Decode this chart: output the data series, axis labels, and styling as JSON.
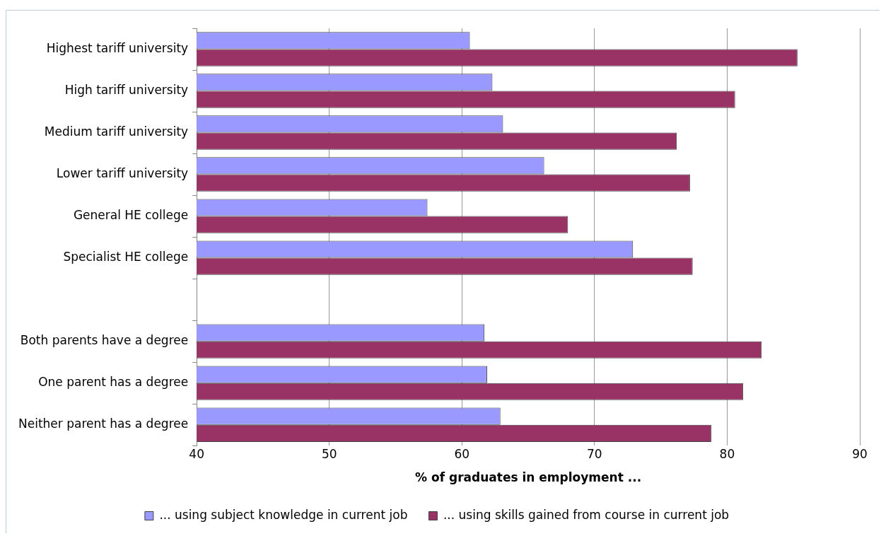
{
  "chart_data": {
    "type": "bar",
    "orientation": "horizontal",
    "categories": [
      "Highest tariff university",
      "High tariff university",
      "Medium tariff university",
      "Lower tariff university",
      "General HE college",
      "Specialist HE college",
      null,
      "Both parents have a degree",
      "One parent has a degree",
      "Neither parent has a degree"
    ],
    "series": [
      {
        "name": "... using subject knowledge in current job",
        "color": "#9999ff",
        "values": [
          60.6,
          62.3,
          63.1,
          66.2,
          57.4,
          72.9,
          null,
          61.7,
          61.9,
          62.9
        ]
      },
      {
        "name": "... using skills gained from course in current job",
        "color": "#993366",
        "values": [
          85.3,
          80.6,
          76.2,
          77.2,
          68.0,
          77.4,
          null,
          82.6,
          81.2,
          78.8
        ]
      }
    ],
    "xlabel": "% of graduates in employment ...",
    "xlim": [
      40,
      90
    ],
    "xticks": [
      40,
      50,
      60,
      70,
      80,
      90
    ],
    "grid": "x",
    "legend": "bottom"
  }
}
